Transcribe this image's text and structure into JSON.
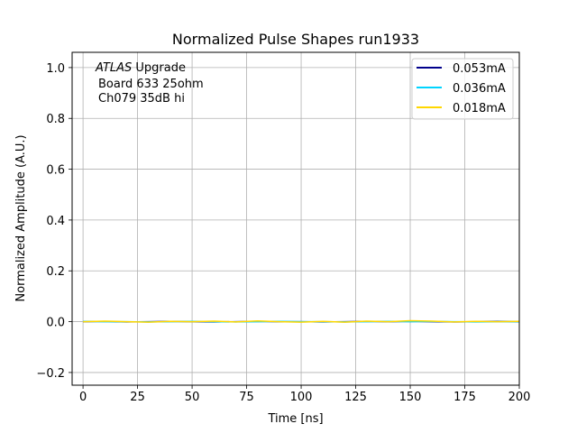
{
  "chart_data": {
    "type": "line",
    "title": "Normalized Pulse Shapes run1933",
    "xlabel": "Time [ns]",
    "ylabel": "Normalized Amplitude (A.U.)",
    "xlim": [
      -5,
      200
    ],
    "ylim": [
      -0.25,
      1.06
    ],
    "xticks": [
      0,
      25,
      50,
      75,
      100,
      125,
      150,
      175,
      200
    ],
    "yticks": [
      -0.2,
      0.0,
      0.2,
      0.4,
      0.6,
      0.8,
      1.0
    ],
    "ytick_labels": [
      "−0.2",
      "0.0",
      "0.2",
      "0.4",
      "0.6",
      "0.8",
      "1.0"
    ],
    "grid": true,
    "legend_position": "top-right",
    "annotation": {
      "atlas": "ATLAS",
      "upgrade": " Upgrade",
      "line2": "Board 633 25ohm",
      "line3": "Ch079 35dB hi"
    },
    "x": [
      0,
      10,
      20,
      30,
      40,
      50,
      60,
      70,
      80,
      90,
      100,
      110,
      120,
      130,
      140,
      150,
      160,
      170,
      180,
      190,
      200
    ],
    "series": [
      {
        "name": "0.053mA",
        "color": "#00008b",
        "values": [
          0.0,
          0.001,
          -0.001,
          0.0,
          0.001,
          0.0,
          -0.001,
          0.0,
          0.001,
          0.0,
          0.0,
          -0.001,
          0.0,
          0.001,
          0.0,
          0.001,
          0.0,
          -0.001,
          0.0,
          0.001,
          0.0
        ]
      },
      {
        "name": "0.036mA",
        "color": "#00d4ff",
        "values": [
          0.001,
          0.0,
          0.0,
          -0.001,
          0.0,
          0.001,
          0.0,
          -0.001,
          0.0,
          0.001,
          0.0,
          0.0,
          -0.001,
          0.0,
          0.001,
          0.0,
          0.001,
          0.0,
          -0.001,
          0.0,
          0.0
        ]
      },
      {
        "name": "0.018mA",
        "color": "#ffd700",
        "values": [
          0.0,
          0.002,
          0.0,
          -0.002,
          0.001,
          0.0,
          0.002,
          -0.001,
          0.003,
          0.0,
          -0.002,
          0.001,
          -0.002,
          0.002,
          0.0,
          0.004,
          0.002,
          -0.001,
          0.001,
          0.0,
          0.001
        ]
      }
    ]
  }
}
